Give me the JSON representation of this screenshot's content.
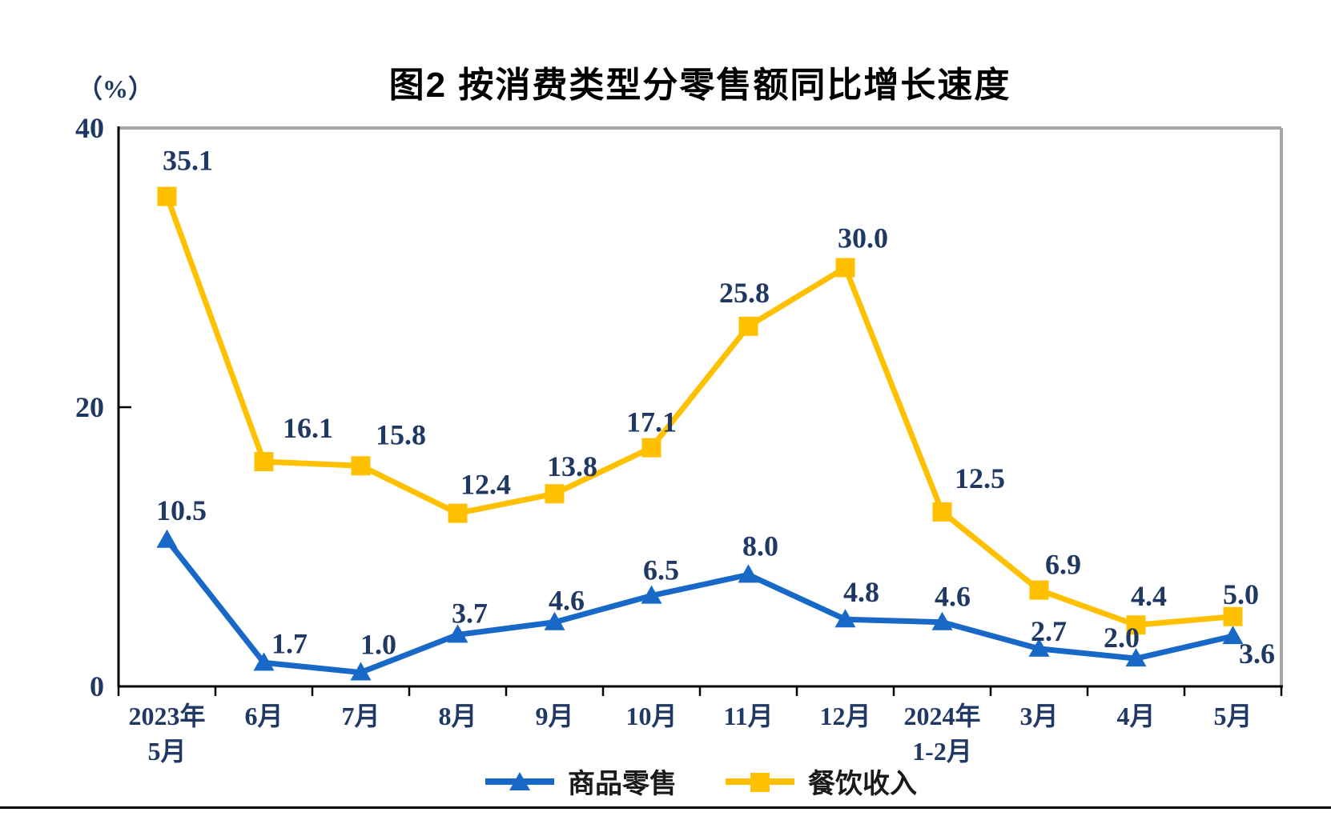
{
  "title": "图2 按消费类型分零售额同比增长速度",
  "chart_data": {
    "type": "line",
    "title": "图2 按消费类型分零售额同比增长速度",
    "unit_label": "（%）",
    "categories": [
      "2023年5月",
      "6月",
      "7月",
      "8月",
      "9月",
      "10月",
      "11月",
      "12月",
      "2024年1-2月",
      "3月",
      "4月",
      "5月"
    ],
    "category_lines": [
      [
        "2023年",
        "5月"
      ],
      [
        "6月"
      ],
      [
        "7月"
      ],
      [
        "8月"
      ],
      [
        "9月"
      ],
      [
        "10月"
      ],
      [
        "11月"
      ],
      [
        "12月"
      ],
      [
        "2024年",
        "1-2月"
      ],
      [
        "3月"
      ],
      [
        "4月"
      ],
      [
        "5月"
      ]
    ],
    "y_axis": {
      "min": 0,
      "max": 40,
      "ticks": [
        0,
        20,
        40
      ]
    },
    "grid": false,
    "legend_position": "bottom",
    "series": [
      {
        "name": "商品零售",
        "key": "goods-retail",
        "color": "#1868c8",
        "marker": "triangle",
        "values": [
          10.5,
          1.7,
          1.0,
          3.7,
          4.6,
          6.5,
          8.0,
          4.8,
          4.6,
          2.7,
          2.0,
          3.6
        ],
        "label_offsets": [
          [
            18,
            -5
          ],
          [
            32,
            8
          ],
          [
            22,
            -3
          ],
          [
            15,
            5
          ],
          [
            15,
            5
          ],
          [
            12,
            0
          ],
          [
            15,
            -4
          ],
          [
            20,
            -2
          ],
          [
            13,
            0
          ],
          [
            12,
            10
          ],
          [
            -18,
            6
          ],
          [
            30,
            54
          ]
        ]
      },
      {
        "name": "餐饮收入",
        "key": "catering-revenue",
        "color": "#ffc000",
        "marker": "square",
        "values": [
          35.1,
          16.1,
          15.8,
          12.4,
          13.8,
          17.1,
          25.8,
          30.0,
          12.5,
          6.9,
          4.4,
          5.0
        ],
        "label_offsets": [
          [
            26,
            -13
          ],
          [
            55,
            -10
          ],
          [
            50,
            -7
          ],
          [
            35,
            -4
          ],
          [
            22,
            -2
          ],
          [
            0,
            0
          ],
          [
            -5,
            -10
          ],
          [
            22,
            -5
          ],
          [
            47,
            -10
          ],
          [
            30,
            0
          ],
          [
            16,
            -4
          ],
          [
            10,
            4
          ]
        ]
      }
    ],
    "colors": {
      "axis": "#000000",
      "frame": "#a6a6a6",
      "label_text": "#203864",
      "legend_text": "#1a1a1a"
    }
  }
}
